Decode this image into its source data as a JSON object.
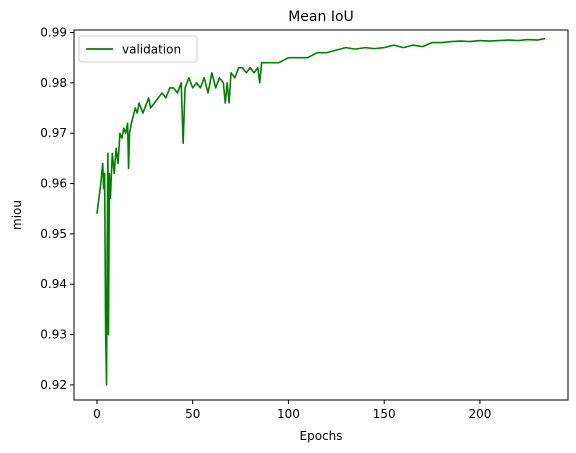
{
  "chart_data": {
    "type": "line",
    "title": "Mean IoU",
    "xlabel": "Epochs",
    "ylabel": "miou",
    "xlim": [
      -12,
      246
    ],
    "ylim": [
      0.917,
      0.9905
    ],
    "xticks": [
      0,
      50,
      100,
      150,
      200
    ],
    "yticks": [
      0.92,
      0.93,
      0.94,
      0.95,
      0.96,
      0.97,
      0.98,
      0.99
    ],
    "grid": false,
    "legend": {
      "position": "top-left"
    },
    "series": [
      {
        "name": "validation",
        "color": "#008000",
        "points": [
          [
            0,
            0.954
          ],
          [
            1,
            0.957
          ],
          [
            2,
            0.96
          ],
          [
            3,
            0.964
          ],
          [
            3.5,
            0.959
          ],
          [
            4,
            0.962
          ],
          [
            4.5,
            0.931
          ],
          [
            5,
            0.92
          ],
          [
            5.3,
            0.945
          ],
          [
            5.7,
            0.966
          ],
          [
            6,
            0.93
          ],
          [
            6.5,
            0.962
          ],
          [
            7,
            0.957
          ],
          [
            8,
            0.966
          ],
          [
            9,
            0.962
          ],
          [
            10,
            0.967
          ],
          [
            11,
            0.964
          ],
          [
            12,
            0.97
          ],
          [
            13,
            0.969
          ],
          [
            14,
            0.971
          ],
          [
            15,
            0.97
          ],
          [
            16,
            0.972
          ],
          [
            16.5,
            0.963
          ],
          [
            17,
            0.97
          ],
          [
            18,
            0.972
          ],
          [
            20,
            0.975
          ],
          [
            21,
            0.974
          ],
          [
            22,
            0.976
          ],
          [
            24,
            0.974
          ],
          [
            25,
            0.975
          ],
          [
            27,
            0.977
          ],
          [
            28,
            0.975
          ],
          [
            30,
            0.976
          ],
          [
            32,
            0.977
          ],
          [
            34,
            0.978
          ],
          [
            36,
            0.977
          ],
          [
            38,
            0.979
          ],
          [
            40,
            0.979
          ],
          [
            42,
            0.978
          ],
          [
            44,
            0.98
          ],
          [
            45,
            0.968
          ],
          [
            46,
            0.979
          ],
          [
            48,
            0.981
          ],
          [
            50,
            0.979
          ],
          [
            52,
            0.98
          ],
          [
            54,
            0.979
          ],
          [
            56,
            0.981
          ],
          [
            58,
            0.978
          ],
          [
            60,
            0.982
          ],
          [
            62,
            0.979
          ],
          [
            64,
            0.981
          ],
          [
            66,
            0.98
          ],
          [
            67,
            0.976
          ],
          [
            68,
            0.98
          ],
          [
            69,
            0.976
          ],
          [
            70,
            0.982
          ],
          [
            72,
            0.981
          ],
          [
            74,
            0.983
          ],
          [
            76,
            0.983
          ],
          [
            78,
            0.982
          ],
          [
            80,
            0.983
          ],
          [
            82,
            0.982
          ],
          [
            84,
            0.983
          ],
          [
            85,
            0.98
          ],
          [
            86,
            0.984
          ],
          [
            88,
            0.984
          ],
          [
            90,
            0.984
          ],
          [
            95,
            0.984
          ],
          [
            100,
            0.985
          ],
          [
            105,
            0.985
          ],
          [
            110,
            0.985
          ],
          [
            115,
            0.986
          ],
          [
            120,
            0.986
          ],
          [
            125,
            0.9865
          ],
          [
            130,
            0.987
          ],
          [
            135,
            0.9867
          ],
          [
            140,
            0.987
          ],
          [
            145,
            0.9868
          ],
          [
            150,
            0.987
          ],
          [
            155,
            0.9875
          ],
          [
            160,
            0.987
          ],
          [
            165,
            0.9875
          ],
          [
            170,
            0.9872
          ],
          [
            175,
            0.988
          ],
          [
            180,
            0.988
          ],
          [
            185,
            0.9882
          ],
          [
            190,
            0.9883
          ],
          [
            195,
            0.9882
          ],
          [
            200,
            0.9884
          ],
          [
            205,
            0.9883
          ],
          [
            210,
            0.9884
          ],
          [
            215,
            0.9885
          ],
          [
            220,
            0.9884
          ],
          [
            225,
            0.9886
          ],
          [
            230,
            0.9885
          ],
          [
            234,
            0.9888
          ]
        ]
      }
    ]
  }
}
